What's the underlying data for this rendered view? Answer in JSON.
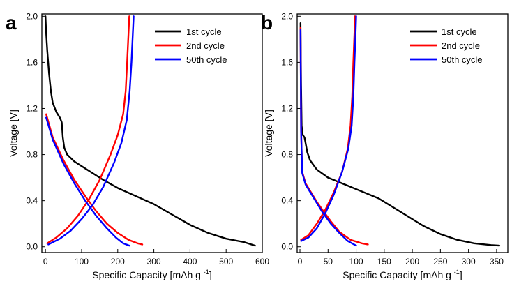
{
  "chart_data": [
    {
      "panel_label": "a",
      "type": "line",
      "xlabel": "Specific Capacity [mAh g",
      "xlabel_sup": "-1",
      "xlabel_end": "]",
      "ylabel": "Voltage [V]",
      "xlim": [
        -10,
        600
      ],
      "ylim": [
        -0.05,
        2.02
      ],
      "xticks": [
        0,
        100,
        200,
        300,
        400,
        500,
        600
      ],
      "yticks": [
        0.0,
        0.4,
        0.8,
        1.2,
        1.6,
        2.0
      ],
      "ytick_labels": [
        "0.0",
        "0.4",
        "0.8",
        "1.2",
        "1.6",
        "2.0"
      ],
      "grid": false,
      "legend_position": "top-right",
      "series": [
        {
          "name": "1st cycle",
          "color": "#000000",
          "segments": [
            [
              [
                0,
                2.0
              ],
              [
                2,
                1.85
              ],
              [
                5,
                1.7
              ],
              [
                10,
                1.5
              ],
              [
                15,
                1.35
              ],
              [
                20,
                1.25
              ],
              [
                30,
                1.17
              ],
              [
                40,
                1.12
              ],
              [
                45,
                1.08
              ],
              [
                48,
                0.95
              ],
              [
                52,
                0.86
              ],
              [
                60,
                0.8
              ],
              [
                80,
                0.74
              ],
              [
                120,
                0.66
              ],
              [
                160,
                0.58
              ],
              [
                200,
                0.51
              ],
              [
                250,
                0.44
              ],
              [
                300,
                0.37
              ],
              [
                350,
                0.28
              ],
              [
                400,
                0.19
              ],
              [
                450,
                0.12
              ],
              [
                500,
                0.07
              ],
              [
                550,
                0.04
              ],
              [
                580,
                0.01
              ]
            ]
          ]
        },
        {
          "name": "2nd cycle",
          "color": "#ff0000",
          "segments": [
            [
              [
                2,
                1.15
              ],
              [
                20,
                0.95
              ],
              [
                50,
                0.75
              ],
              [
                80,
                0.58
              ],
              [
                110,
                0.44
              ],
              [
                140,
                0.31
              ],
              [
                170,
                0.2
              ],
              [
                200,
                0.12
              ],
              [
                230,
                0.06
              ],
              [
                255,
                0.03
              ],
              [
                268,
                0.02
              ]
            ],
            [
              [
                5,
                0.03
              ],
              [
                30,
                0.08
              ],
              [
                60,
                0.16
              ],
              [
                90,
                0.27
              ],
              [
                120,
                0.41
              ],
              [
                150,
                0.58
              ],
              [
                180,
                0.8
              ],
              [
                200,
                0.97
              ],
              [
                215,
                1.15
              ],
              [
                222,
                1.35
              ],
              [
                226,
                1.6
              ],
              [
                229,
                1.8
              ],
              [
                232,
                2.0
              ]
            ]
          ]
        },
        {
          "name": "50th cycle",
          "color": "#0000ff",
          "segments": [
            [
              [
                2,
                1.12
              ],
              [
                20,
                0.93
              ],
              [
                50,
                0.72
              ],
              [
                80,
                0.55
              ],
              [
                110,
                0.4
              ],
              [
                140,
                0.27
              ],
              [
                170,
                0.16
              ],
              [
                195,
                0.08
              ],
              [
                215,
                0.03
              ],
              [
                232,
                0.01
              ]
            ],
            [
              [
                8,
                0.02
              ],
              [
                40,
                0.07
              ],
              [
                70,
                0.14
              ],
              [
                100,
                0.24
              ],
              [
                130,
                0.36
              ],
              [
                160,
                0.52
              ],
              [
                190,
                0.73
              ],
              [
                210,
                0.9
              ],
              [
                225,
                1.1
              ],
              [
                233,
                1.35
              ],
              [
                238,
                1.6
              ],
              [
                241,
                1.8
              ],
              [
                244,
                2.0
              ]
            ]
          ]
        }
      ]
    },
    {
      "panel_label": "b",
      "type": "line",
      "xlabel": "Specific Capacity [mAh g",
      "xlabel_sup": "-1",
      "xlabel_end": "]",
      "ylabel": "Voltage [V]",
      "xlim": [
        -5,
        370
      ],
      "ylim": [
        -0.05,
        2.02
      ],
      "xticks": [
        0,
        50,
        100,
        150,
        200,
        250,
        300,
        350
      ],
      "yticks": [
        0.0,
        0.4,
        0.8,
        1.2,
        1.6,
        2.0
      ],
      "ytick_labels": [
        "0.0",
        "0.4",
        "0.8",
        "1.2",
        "1.6",
        "2.0"
      ],
      "grid": false,
      "legend_position": "top-right",
      "series": [
        {
          "name": "1st cycle",
          "color": "#000000",
          "segments": [
            [
              [
                1,
                1.94
              ],
              [
                2,
                1.4
              ],
              [
                3,
                1.05
              ],
              [
                5,
                0.97
              ],
              [
                8,
                0.95
              ],
              [
                10,
                0.9
              ],
              [
                13,
                0.82
              ],
              [
                18,
                0.75
              ],
              [
                30,
                0.67
              ],
              [
                50,
                0.6
              ],
              [
                80,
                0.54
              ],
              [
                110,
                0.48
              ],
              [
                140,
                0.42
              ],
              [
                160,
                0.36
              ],
              [
                190,
                0.27
              ],
              [
                220,
                0.18
              ],
              [
                250,
                0.11
              ],
              [
                280,
                0.06
              ],
              [
                310,
                0.03
              ],
              [
                340,
                0.015
              ],
              [
                355,
                0.01
              ]
            ]
          ]
        },
        {
          "name": "2nd cycle",
          "color": "#ff0000",
          "segments": [
            [
              [
                1,
                1.9
              ],
              [
                2,
                1.0
              ],
              [
                4,
                0.65
              ],
              [
                10,
                0.55
              ],
              [
                20,
                0.47
              ],
              [
                30,
                0.39
              ],
              [
                40,
                0.32
              ],
              [
                55,
                0.22
              ],
              [
                70,
                0.13
              ],
              [
                90,
                0.06
              ],
              [
                110,
                0.03
              ],
              [
                121,
                0.02
              ]
            ],
            [
              [
                2,
                0.06
              ],
              [
                15,
                0.1
              ],
              [
                30,
                0.2
              ],
              [
                45,
                0.32
              ],
              [
                60,
                0.47
              ],
              [
                75,
                0.65
              ],
              [
                85,
                0.85
              ],
              [
                90,
                1.05
              ],
              [
                93,
                1.3
              ],
              [
                95,
                1.6
              ],
              [
                97,
                1.85
              ],
              [
                98,
                2.0
              ]
            ]
          ]
        },
        {
          "name": "50th cycle",
          "color": "#0000ff",
          "segments": [
            [
              [
                1,
                1.88
              ],
              [
                2,
                1.0
              ],
              [
                4,
                0.64
              ],
              [
                10,
                0.54
              ],
              [
                20,
                0.46
              ],
              [
                30,
                0.38
              ],
              [
                40,
                0.3
              ],
              [
                55,
                0.2
              ],
              [
                70,
                0.12
              ],
              [
                85,
                0.05
              ],
              [
                100,
                0.01
              ]
            ],
            [
              [
                2,
                0.05
              ],
              [
                15,
                0.08
              ],
              [
                30,
                0.16
              ],
              [
                45,
                0.29
              ],
              [
                60,
                0.45
              ],
              [
                75,
                0.65
              ],
              [
                86,
                0.85
              ],
              [
                92,
                1.05
              ],
              [
                95,
                1.3
              ],
              [
                97,
                1.6
              ],
              [
                99,
                1.85
              ],
              [
                100,
                2.0
              ]
            ]
          ]
        }
      ]
    }
  ]
}
